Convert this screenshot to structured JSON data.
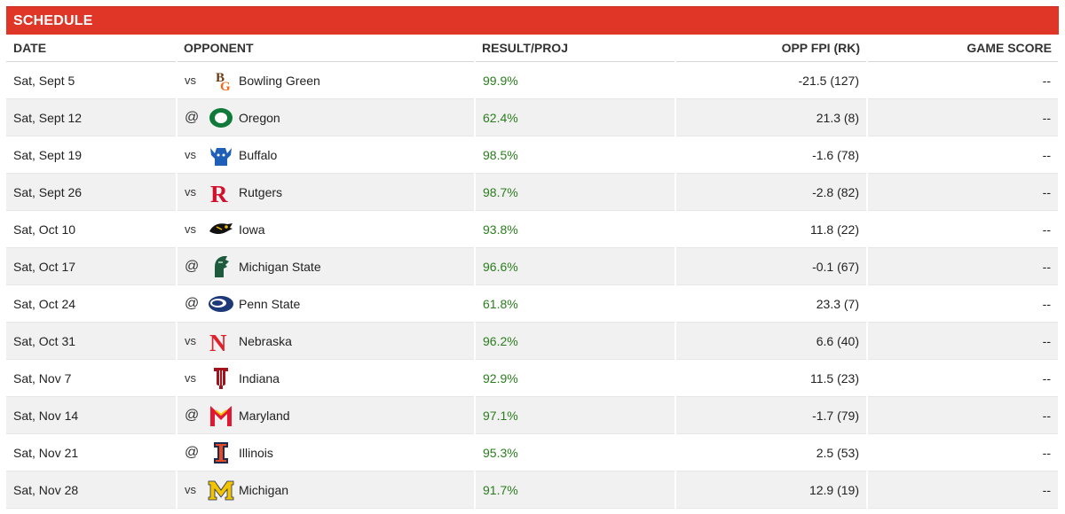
{
  "header": {
    "title": "SCHEDULE"
  },
  "columns": {
    "date": "DATE",
    "opponent": "OPPONENT",
    "result": "RESULT/PROJ",
    "fpi": "OPP FPI (RK)",
    "score": "GAME SCORE"
  },
  "rows": [
    {
      "date": "Sat, Sept 5",
      "ha": "vs",
      "team": "Bowling Green",
      "logo": "bowling-green-logo",
      "result": "99.9%",
      "fpi": "-21.5 (127)",
      "score": "--"
    },
    {
      "date": "Sat, Sept 12",
      "ha": "@",
      "team": "Oregon",
      "logo": "oregon-logo",
      "result": "62.4%",
      "fpi": "21.3 (8)",
      "score": "--"
    },
    {
      "date": "Sat, Sept 19",
      "ha": "vs",
      "team": "Buffalo",
      "logo": "buffalo-logo",
      "result": "98.5%",
      "fpi": "-1.6 (78)",
      "score": "--"
    },
    {
      "date": "Sat, Sept 26",
      "ha": "vs",
      "team": "Rutgers",
      "logo": "rutgers-logo",
      "result": "98.7%",
      "fpi": "-2.8 (82)",
      "score": "--"
    },
    {
      "date": "Sat, Oct 10",
      "ha": "vs",
      "team": "Iowa",
      "logo": "iowa-logo",
      "result": "93.8%",
      "fpi": "11.8 (22)",
      "score": "--"
    },
    {
      "date": "Sat, Oct 17",
      "ha": "@",
      "team": "Michigan State",
      "logo": "michigan-state-logo",
      "result": "96.6%",
      "fpi": "-0.1 (67)",
      "score": "--"
    },
    {
      "date": "Sat, Oct 24",
      "ha": "@",
      "team": "Penn State",
      "logo": "penn-state-logo",
      "result": "61.8%",
      "fpi": "23.3 (7)",
      "score": "--"
    },
    {
      "date": "Sat, Oct 31",
      "ha": "vs",
      "team": "Nebraska",
      "logo": "nebraska-logo",
      "result": "96.2%",
      "fpi": "6.6 (40)",
      "score": "--"
    },
    {
      "date": "Sat, Nov 7",
      "ha": "vs",
      "team": "Indiana",
      "logo": "indiana-logo",
      "result": "92.9%",
      "fpi": "11.5 (23)",
      "score": "--"
    },
    {
      "date": "Sat, Nov 14",
      "ha": "@",
      "team": "Maryland",
      "logo": "maryland-logo",
      "result": "97.1%",
      "fpi": "-1.7 (79)",
      "score": "--"
    },
    {
      "date": "Sat, Nov 21",
      "ha": "@",
      "team": "Illinois",
      "logo": "illinois-logo",
      "result": "95.3%",
      "fpi": "2.5 (53)",
      "score": "--"
    },
    {
      "date": "Sat, Nov 28",
      "ha": "vs",
      "team": "Michigan",
      "logo": "michigan-logo",
      "result": "91.7%",
      "fpi": "12.9 (19)",
      "score": "--"
    }
  ],
  "colors": {
    "banner": "#e03628",
    "result_text": "#2a7d1d",
    "row_alt": "#f1f1f1"
  }
}
